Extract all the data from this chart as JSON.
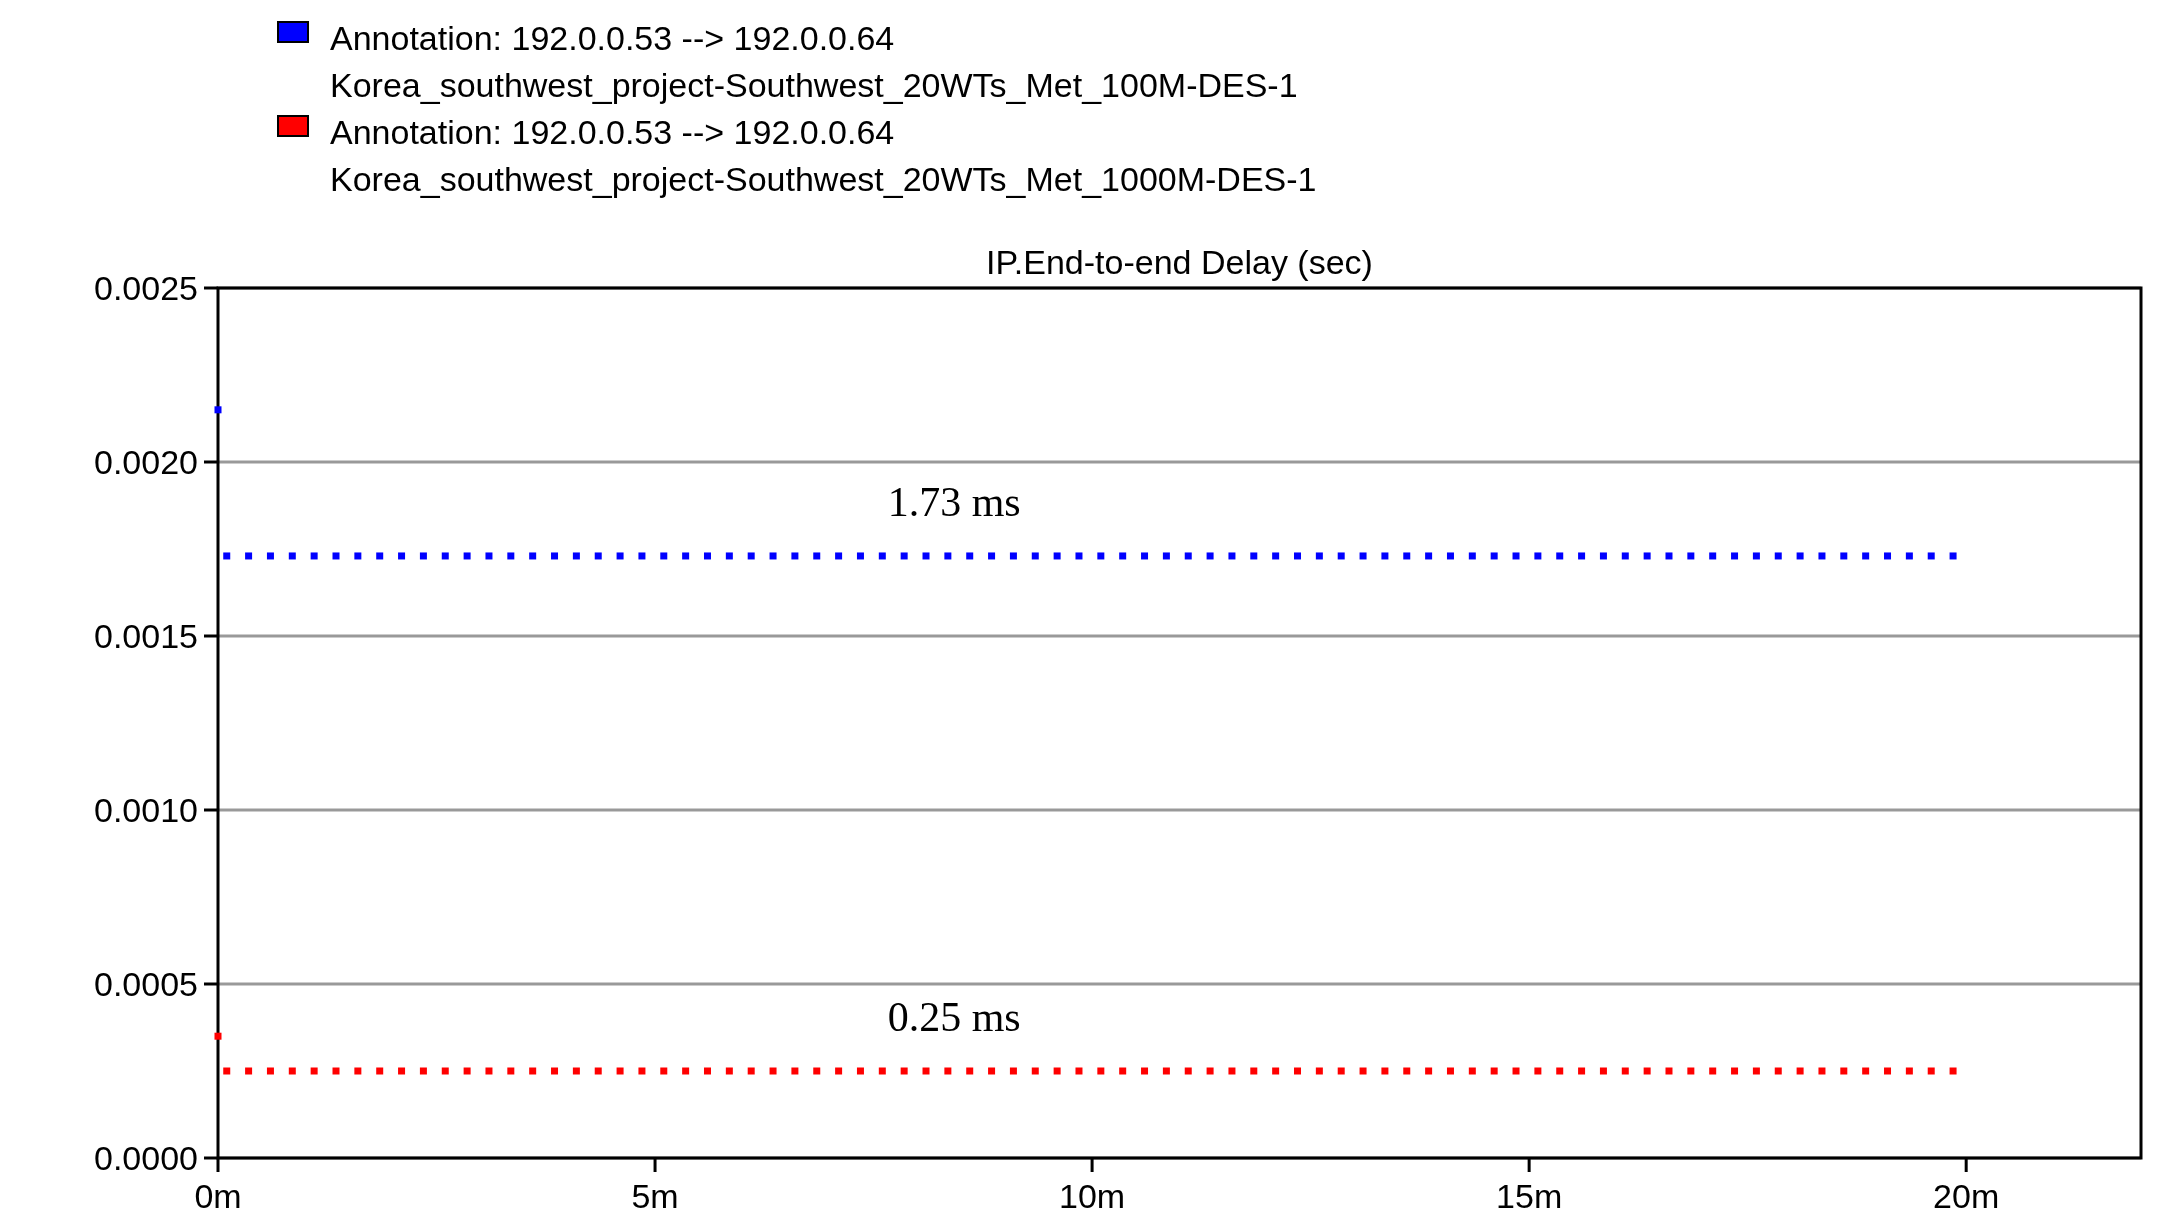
{
  "chart_data": {
    "type": "scatter",
    "title": "IP.End-to-end Delay (sec)",
    "marker": "square",
    "grid": "y",
    "legend": "top",
    "x": [
      0,
      0.1,
      0.35,
      0.6,
      0.85,
      1.1,
      1.35,
      1.6,
      1.85,
      2.1,
      2.35,
      2.6,
      2.85,
      3.1,
      3.35,
      3.6,
      3.85,
      4.1,
      4.35,
      4.6,
      4.85,
      5.1,
      5.35,
      5.6,
      5.85,
      6.1,
      6.35,
      6.6,
      6.85,
      7.1,
      7.35,
      7.6,
      7.85,
      8.1,
      8.35,
      8.6,
      8.85,
      9.1,
      9.35,
      9.6,
      9.85,
      10.1,
      10.35,
      10.6,
      10.85,
      11.1,
      11.35,
      11.6,
      11.85,
      12.1,
      12.35,
      12.6,
      12.85,
      13.1,
      13.35,
      13.6,
      13.85,
      14.1,
      14.35,
      14.6,
      14.85,
      15.1,
      15.35,
      15.6,
      15.85,
      16.1,
      16.35,
      16.6,
      16.85,
      17.1,
      17.35,
      17.6,
      17.85,
      18.1,
      18.35,
      18.6,
      18.85,
      19.1,
      19.35,
      19.6,
      19.85
    ],
    "xlim": [
      0,
      22
    ],
    "xticks": [
      {
        "value": 0,
        "label": "0m"
      },
      {
        "value": 5,
        "label": "5m"
      },
      {
        "value": 10,
        "label": "10m"
      },
      {
        "value": 15,
        "label": "15m"
      },
      {
        "value": 20,
        "label": "20m"
      }
    ],
    "ylim": [
      0,
      0.0025
    ],
    "yticks": [
      {
        "value": 0,
        "label": "0.0000"
      },
      {
        "value": 0.0005,
        "label": "0.0005"
      },
      {
        "value": 0.001,
        "label": "0.0010"
      },
      {
        "value": 0.0015,
        "label": "0.0015"
      },
      {
        "value": 0.002,
        "label": "0.0020"
      },
      {
        "value": 0.0025,
        "label": "0.0025"
      }
    ],
    "series": [
      {
        "name": "Annotation: 192.0.0.53 --> 192.0.0.64\nKorea_southwest_project-Southwest_20WTs_Met_100M-DES-1",
        "color": "#0000ff",
        "values": [
          0.00215,
          0.00173,
          0.00173,
          0.00173,
          0.00173,
          0.00173,
          0.00173,
          0.00173,
          0.00173,
          0.00173,
          0.00173,
          0.00173,
          0.00173,
          0.00173,
          0.00173,
          0.00173,
          0.00173,
          0.00173,
          0.00173,
          0.00173,
          0.00173,
          0.00173,
          0.00173,
          0.00173,
          0.00173,
          0.00173,
          0.00173,
          0.00173,
          0.00173,
          0.00173,
          0.00173,
          0.00173,
          0.00173,
          0.00173,
          0.00173,
          0.00173,
          0.00173,
          0.00173,
          0.00173,
          0.00173,
          0.00173,
          0.00173,
          0.00173,
          0.00173,
          0.00173,
          0.00173,
          0.00173,
          0.00173,
          0.00173,
          0.00173,
          0.00173,
          0.00173,
          0.00173,
          0.00173,
          0.00173,
          0.00173,
          0.00173,
          0.00173,
          0.00173,
          0.00173,
          0.00173,
          0.00173,
          0.00173,
          0.00173,
          0.00173,
          0.00173,
          0.00173,
          0.00173,
          0.00173,
          0.00173,
          0.00173,
          0.00173,
          0.00173,
          0.00173,
          0.00173,
          0.00173,
          0.00173,
          0.00173,
          0.00173,
          0.00173,
          0.00173
        ]
      },
      {
        "name": "Annotation: 192.0.0.53 --> 192.0.0.64\nKorea_southwest_project-Southwest_20WTs_Met_1000M-DES-1",
        "color": "#ff0000",
        "values": [
          0.00035,
          0.00025,
          0.00025,
          0.00025,
          0.00025,
          0.00025,
          0.00025,
          0.00025,
          0.00025,
          0.00025,
          0.00025,
          0.00025,
          0.00025,
          0.00025,
          0.00025,
          0.00025,
          0.00025,
          0.00025,
          0.00025,
          0.00025,
          0.00025,
          0.00025,
          0.00025,
          0.00025,
          0.00025,
          0.00025,
          0.00025,
          0.00025,
          0.00025,
          0.00025,
          0.00025,
          0.00025,
          0.00025,
          0.00025,
          0.00025,
          0.00025,
          0.00025,
          0.00025,
          0.00025,
          0.00025,
          0.00025,
          0.00025,
          0.00025,
          0.00025,
          0.00025,
          0.00025,
          0.00025,
          0.00025,
          0.00025,
          0.00025,
          0.00025,
          0.00025,
          0.00025,
          0.00025,
          0.00025,
          0.00025,
          0.00025,
          0.00025,
          0.00025,
          0.00025,
          0.00025,
          0.00025,
          0.00025,
          0.00025,
          0.00025,
          0.00025,
          0.00025,
          0.00025,
          0.00025,
          0.00025,
          0.00025,
          0.00025,
          0.00025,
          0.00025,
          0.00025,
          0.00025,
          0.00025,
          0.00025,
          0.00025,
          0.00025,
          0.00025
        ]
      }
    ],
    "annotations": [
      "1.73 ms",
      "0.25 ms"
    ]
  }
}
